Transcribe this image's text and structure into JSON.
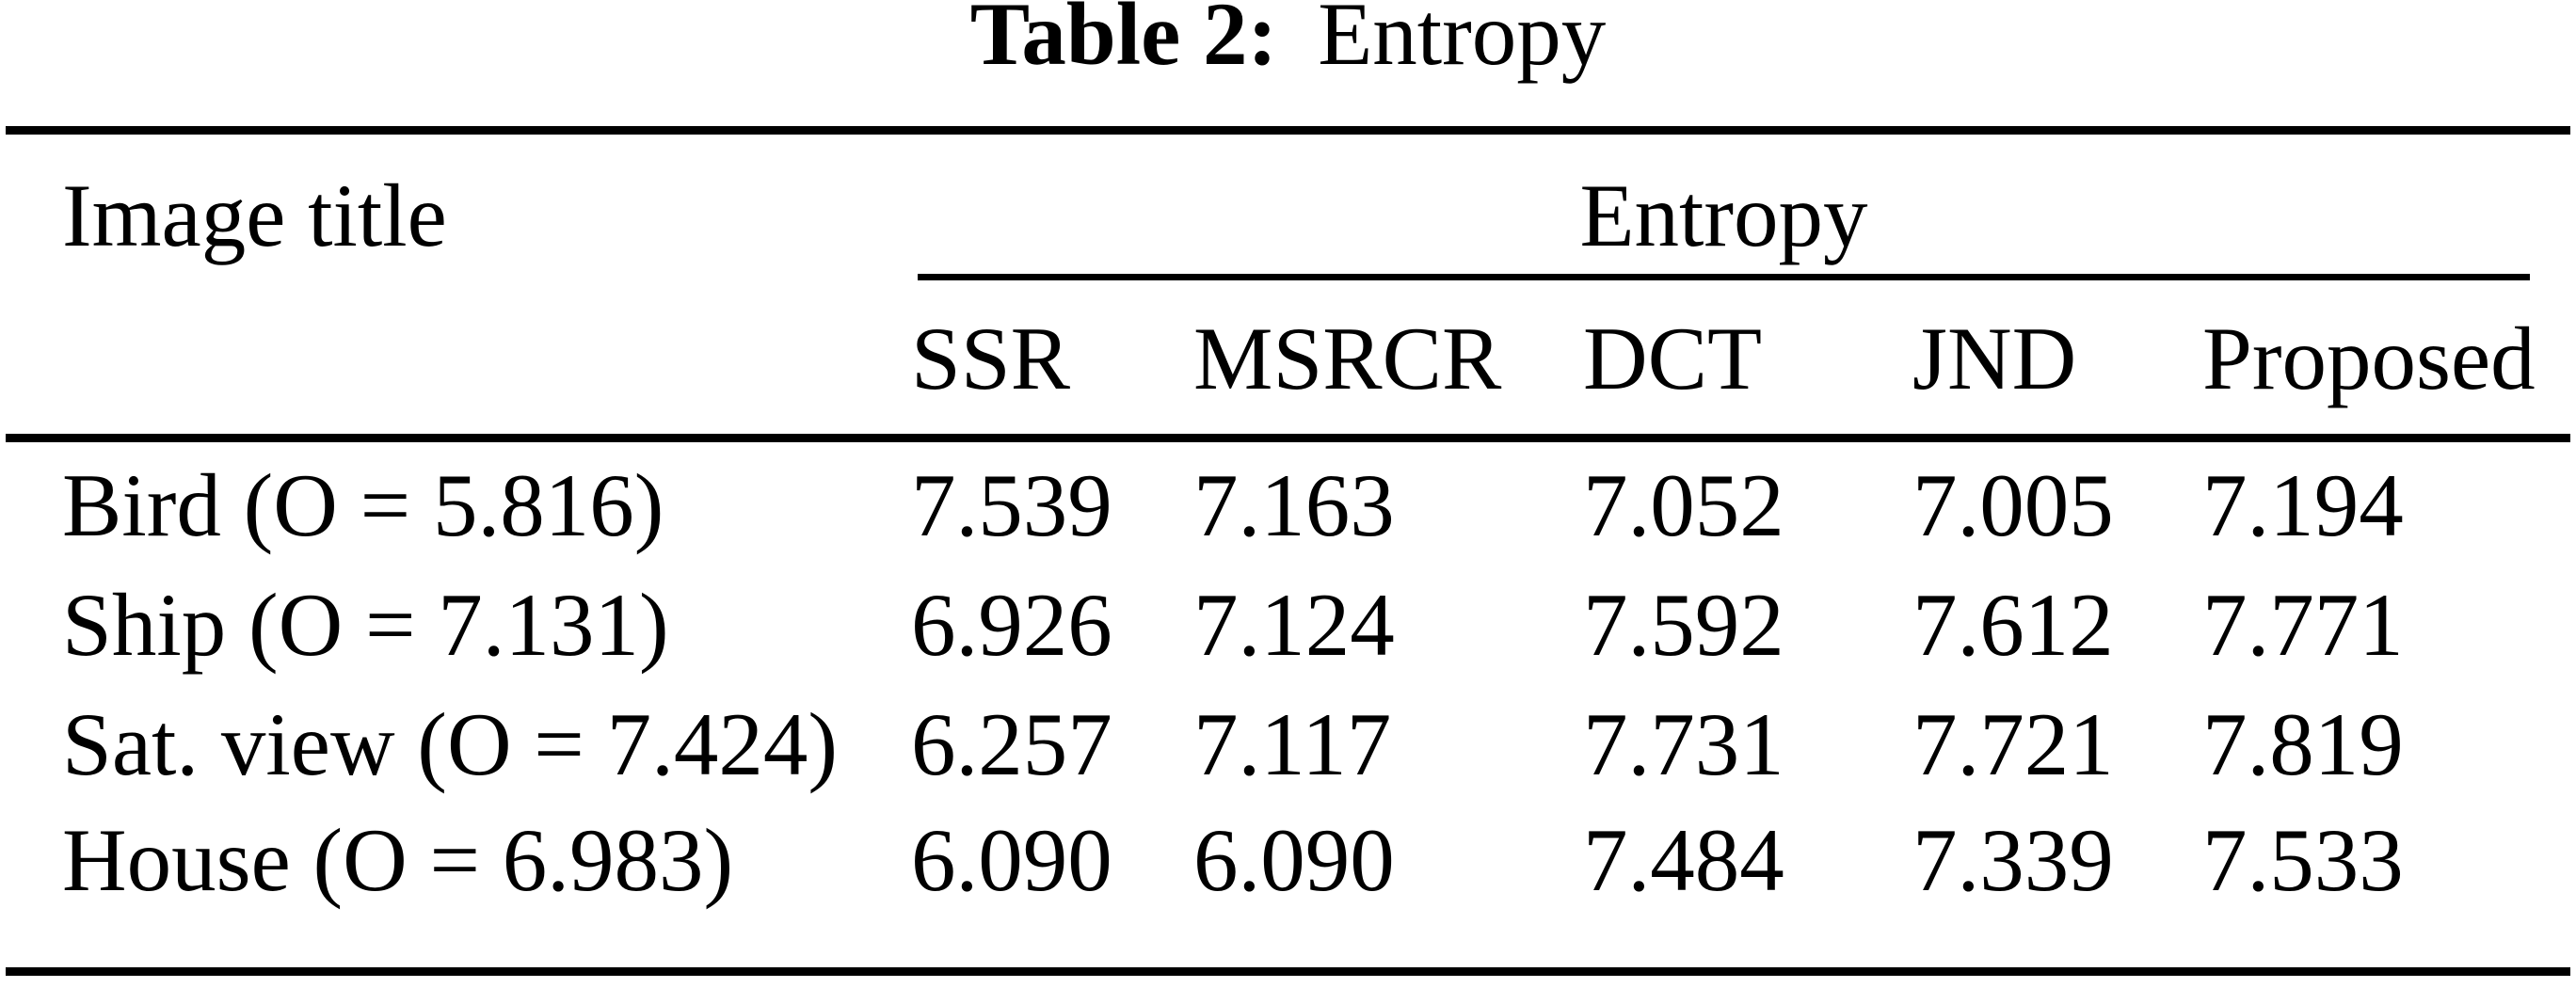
{
  "caption": {
    "label": "Table 2:",
    "title": "Entropy"
  },
  "table": {
    "corner_header": "Image title",
    "group_header": "Entropy",
    "columns": [
      "SSR",
      "MSRCR",
      "DCT",
      "JND",
      "Proposed"
    ],
    "rows": [
      {
        "label": "Bird (O = 5.816)",
        "values": [
          "7.539",
          "7.163",
          "7.052",
          "7.005",
          "7.194"
        ]
      },
      {
        "label": "Ship (O = 7.131)",
        "values": [
          "6.926",
          "7.124",
          "7.592",
          "7.612",
          "7.771"
        ]
      },
      {
        "label": "Sat. view (O = 7.424)",
        "values": [
          "6.257",
          "7.117",
          "7.731",
          "7.721",
          "7.819"
        ]
      },
      {
        "label": "House (O = 6.983)",
        "values": [
          "6.090",
          "6.090",
          "7.484",
          "7.339",
          "7.533"
        ]
      }
    ]
  },
  "colors": {
    "text": "#000000",
    "background": "#ffffff",
    "rule": "#000000"
  }
}
